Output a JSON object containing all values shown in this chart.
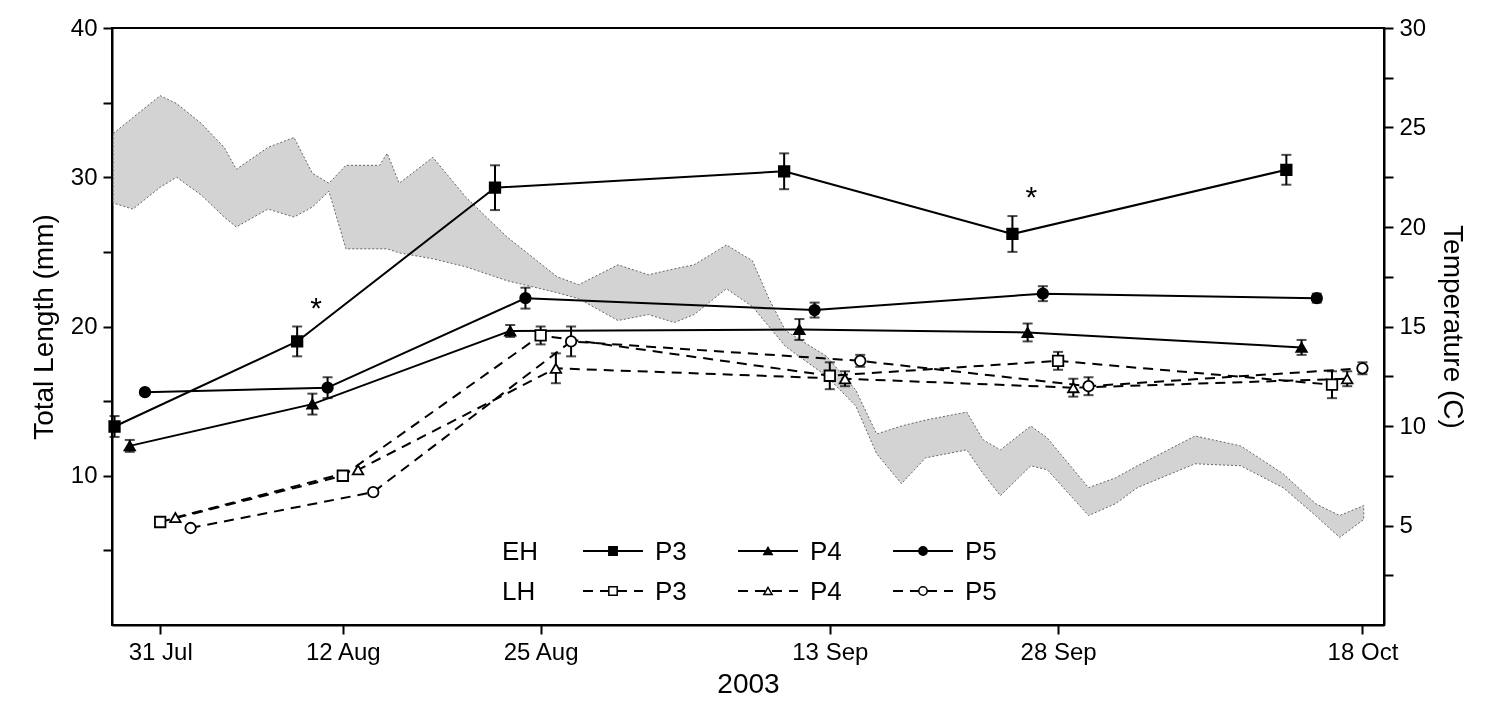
{
  "chart_data": {
    "type": "line",
    "xlabel": "2003",
    "ylabel": "Total Length (mm)",
    "y2label": "Temperature (C)",
    "xlim": [
      "2003-07-27T20:00",
      "2003-10-19T10:00"
    ],
    "xticks": [
      {
        "value": "2003-07-31",
        "label": "31 Jul"
      },
      {
        "value": "2003-08-12",
        "label": "12 Aug"
      },
      {
        "value": "2003-08-25",
        "label": "25 Aug"
      },
      {
        "value": "2003-09-13",
        "label": "13 Sep"
      },
      {
        "value": "2003-09-28",
        "label": "28 Sep"
      },
      {
        "value": "2003-10-18",
        "label": "18 Oct"
      }
    ],
    "ylim": [
      0,
      40
    ],
    "yticks": [
      {
        "value": 5,
        "label": null
      },
      10,
      {
        "value": 15,
        "label": null
      },
      20,
      {
        "value": 25,
        "label": null
      },
      30,
      {
        "value": 35,
        "label": null
      },
      40
    ],
    "y2lim": [
      0,
      30
    ],
    "y2ticks": [
      {
        "value": 2.5,
        "label": null
      },
      5,
      {
        "value": 7.5,
        "label": null
      },
      10,
      {
        "value": 12.5,
        "label": null
      },
      15,
      {
        "value": 17.5,
        "label": null
      },
      20,
      {
        "value": 22.5,
        "label": null
      },
      25,
      {
        "value": 27.5,
        "label": null
      },
      30
    ],
    "grid": false,
    "legend": "bottom",
    "annotations": [
      "EH",
      "LH",
      {
        "text": "*",
        "x": "2003-08-09",
        "y": 20.0
      },
      {
        "text": "*",
        "x": "2003-09-25",
        "y": 27.4
      }
    ],
    "series": [
      {
        "type": "line",
        "axis": "y2",
        "color": "#c8c8c8",
        "values": [
          null,
          null,
          null,
          null,
          null,
          null,
          null,
          null,
          null,
          null,
          null,
          null,
          null,
          null,
          null,
          null,
          null,
          null,
          null,
          null,
          null,
          null,
          null,
          null,
          null,
          null,
          null,
          null,
          null,
          null,
          null,
          null,
          null,
          null,
          null,
          null,
          null,
          null,
          null,
          null,
          null,
          null,
          null,
          null,
          null,
          null,
          null
        ],
        "x": [
          "2003-07-27T22:00",
          "2003-07-29T05:00",
          "2003-07-31",
          "2003-08-01T02:00",
          "2003-08-02T17:00",
          "2003-08-04T05:00",
          "2003-08-05",
          "2003-08-07T02:00",
          "2003-08-08T19:00",
          "2003-08-10",
          "2003-08-11T02:00",
          "2003-08-12T05:00",
          "2003-08-14T10:00",
          "2003-08-14T22:00",
          "2003-08-15T17:00",
          "2003-08-17T22:00",
          "2003-08-20T02:00",
          "2003-08-22T19:00",
          "2003-08-26T02:00",
          "2003-08-27T12:00",
          "2003-08-30T02:00",
          "2003-09-01T02:00",
          "2003-09-02T19:00",
          "2003-09-04T02:00",
          "2003-09-06T05:00",
          "2003-09-07T22:00",
          "2003-09-09",
          "2003-09-10T02:00",
          "2003-09-12T19:00",
          "2003-09-14T17:00",
          "2003-09-16T02:00",
          "2003-09-17T17:00",
          "2003-09-19T07:00",
          "2003-09-22",
          "2003-09-23T02:00",
          "2003-09-24T05:00",
          "2003-09-26T05:00",
          "2003-09-27T07:00",
          "2003-09-30",
          "2003-10-01T19:00",
          "2003-10-03T05:00",
          "2003-10-07",
          "2003-10-10",
          "2003-10-12T19:00",
          "2003-10-14T22:00",
          "2003-10-16T12:00",
          "2003-10-18T02:00"
        ],
        "upper": [
          24.7,
          25.5,
          26.6,
          26.2,
          25.2,
          24.0,
          22.9,
          24.0,
          24.5,
          22.7,
          22.2,
          23.1,
          23.1,
          23.7,
          22.2,
          23.5,
          21.5,
          19.5,
          17.5,
          17.1,
          18.1,
          17.6,
          17.9,
          18.1,
          19.1,
          18.3,
          16.4,
          14.8,
          13.5,
          11.8,
          9.6,
          10.0,
          10.3,
          10.7,
          9.3,
          8.8,
          10.0,
          9.4,
          6.9,
          7.4,
          8.0,
          9.5,
          9.0,
          7.6,
          6.1,
          5.5,
          6.0
        ],
        "lower": [
          21.2,
          20.9,
          22.0,
          22.5,
          21.6,
          20.5,
          20.0,
          20.9,
          20.5,
          21.0,
          21.8,
          18.9,
          18.9,
          18.9,
          18.7,
          18.4,
          18.0,
          17.3,
          16.7,
          16.4,
          15.3,
          15.6,
          15.2,
          15.6,
          16.9,
          16.0,
          15.0,
          14.0,
          12.5,
          11.0,
          8.6,
          7.1,
          8.4,
          8.8,
          7.6,
          6.5,
          8.0,
          7.8,
          5.5,
          6.1,
          6.9,
          8.1,
          8.0,
          6.9,
          5.5,
          4.4,
          5.3
        ]
      },
      {
        "name": "P3",
        "color": "#000000",
        "marker": "square",
        "line_style": "solid",
        "x": [
          "2003-07-28",
          "2003-08-09",
          "2003-08-22",
          "2003-09-10",
          "2003-09-25",
          "2003-10-13"
        ],
        "values": [
          13.3,
          19.0,
          29.3,
          30.4,
          26.2,
          30.5
        ],
        "errors": [
          0.7,
          1.0,
          1.5,
          1.2,
          1.2,
          1.0
        ]
      },
      {
        "name": "P4",
        "color": "#000000",
        "marker": "triangle",
        "line_style": "solid",
        "x": [
          "2003-07-29",
          "2003-08-10",
          "2003-08-23",
          "2003-09-11",
          "2003-09-26",
          "2003-10-14"
        ],
        "values": [
          12.0,
          14.8,
          19.7,
          19.8,
          19.6,
          18.6
        ],
        "errors": [
          0.4,
          0.7,
          0.4,
          0.7,
          0.6,
          0.5
        ]
      },
      {
        "name": "P5",
        "color": "#000000",
        "marker": "circle",
        "line_style": "solid",
        "x": [
          "2003-07-30",
          "2003-08-11",
          "2003-08-24",
          "2003-09-12",
          "2003-09-27",
          "2003-10-15"
        ],
        "values": [
          15.6,
          15.9,
          21.9,
          21.1,
          22.2,
          21.9
        ],
        "errors": [
          null,
          0.7,
          0.7,
          0.5,
          0.5,
          0.3
        ]
      },
      {
        "name": "P3",
        "color": "#000000",
        "marker": "square",
        "line_style": "dashed",
        "x": [
          "2003-07-31",
          "2003-08-12",
          "2003-08-25",
          "2003-09-13",
          "2003-09-28",
          "2003-10-16"
        ],
        "values": [
          6.9,
          10.0,
          19.4,
          16.7,
          17.7,
          16.1
        ],
        "errors": [
          null,
          null,
          0.6,
          0.9,
          0.6,
          0.9
        ]
      },
      {
        "name": "P4",
        "color": "#000000",
        "marker": "triangle",
        "line_style": "dashed",
        "x": [
          "2003-08-01",
          "2003-08-13",
          "2003-08-26",
          "2003-09-14",
          "2003-09-29",
          "2003-10-17"
        ],
        "values": [
          7.2,
          10.4,
          17.2,
          16.5,
          15.9,
          16.5
        ],
        "errors": [
          null,
          null,
          1.0,
          0.5,
          0.6,
          0.5
        ]
      },
      {
        "name": "P5",
        "color": "#000000",
        "marker": "circle",
        "line_style": "dashed",
        "x": [
          "2003-08-02",
          "2003-08-14",
          "2003-08-27",
          "2003-09-15",
          "2003-09-30",
          "2003-10-18"
        ],
        "values": [
          6.5,
          8.9,
          19.0,
          17.7,
          16.0,
          17.2
        ],
        "errors": [
          null,
          null,
          1.0,
          0.4,
          0.6,
          0.4
        ]
      }
    ]
  }
}
